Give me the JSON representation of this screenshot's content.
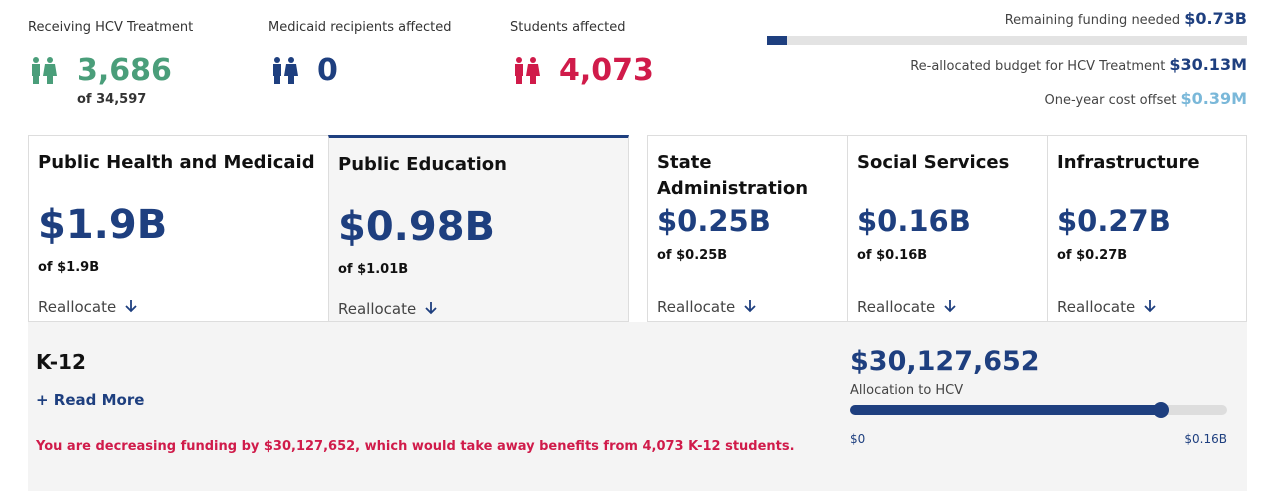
{
  "stats": [
    {
      "label": "Receiving HCV Treatment",
      "value": "3,686",
      "sub": "of 34,597"
    },
    {
      "label": "Medicaid recipients affected",
      "value": "0"
    },
    {
      "label": "Students affected",
      "value": "4,073"
    }
  ],
  "summary": [
    {
      "label": "Remaining funding needed",
      "value": "$0.73B"
    },
    {
      "label": "Re-allocated budget for HCV Treatment",
      "value": "$30.13M"
    },
    {
      "label": "One-year cost offset",
      "value": "$0.39M"
    }
  ],
  "cards": [
    {
      "title": "Public Health and Medicaid",
      "amount": "$1.9B",
      "of": "of $1.9B",
      "action": "Reallocate"
    },
    {
      "title": "Public Education",
      "amount": "$0.98B",
      "of": "of $1.01B",
      "action": "Reallocate"
    },
    {
      "title": "State Administration",
      "amount": "$0.25B",
      "of": "of $0.25B",
      "action": "Reallocate"
    },
    {
      "title": "Social Services",
      "amount": "$0.16B",
      "of": "of $0.16B",
      "action": "Reallocate"
    },
    {
      "title": "Infrastructure",
      "amount": "$0.27B",
      "of": "of $0.27B",
      "action": "Reallocate"
    }
  ],
  "detail": {
    "title": "K-12",
    "read_more": "+ Read More",
    "warning": "You are decreasing funding by $30,127,652, which would take away benefits from 4,073 K-12 students.",
    "allocation": "$30,127,652",
    "allocation_label": "Allocation to HCV",
    "slider_min": "$0",
    "slider_max": "$0.16B"
  }
}
